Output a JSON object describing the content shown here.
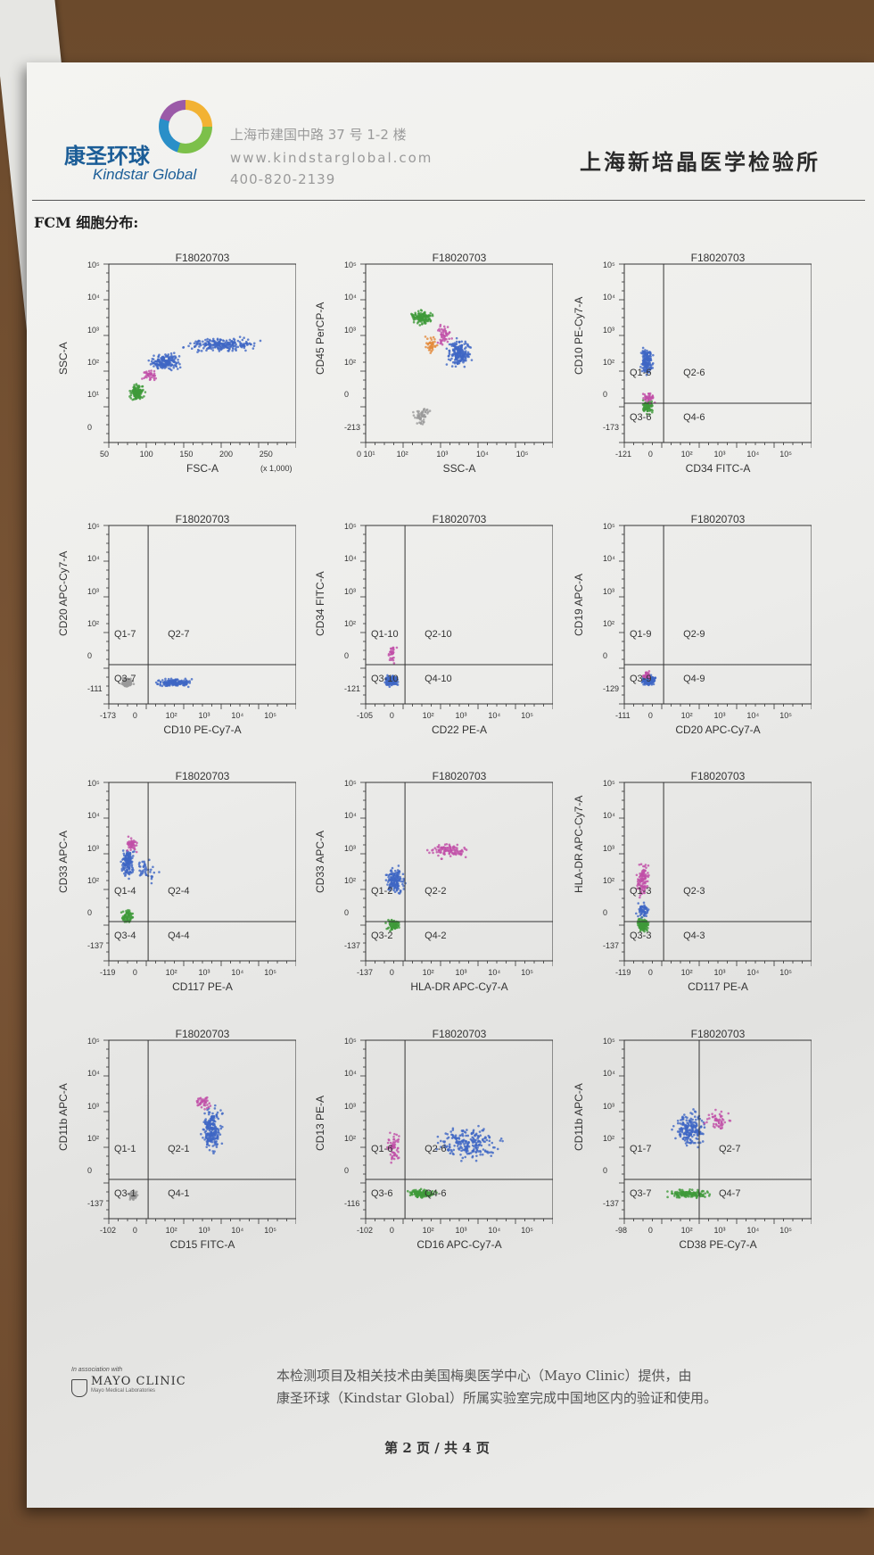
{
  "header": {
    "logo_cn": "康圣环球",
    "logo_en": "Kindstar Global",
    "address": "上海市建国中路 37 号 1-2 楼",
    "website": "www.kindstarglobal.com",
    "phone": "400-820-2139",
    "lab_name": "上海新培晶医学检验所"
  },
  "section_title": "FCM 细胞分布:",
  "plots": [
    {
      "title": "F18020703",
      "xlabel": "FSC-A",
      "ylabel": "SSC-A",
      "q1": "",
      "q2": "",
      "q3": "",
      "q4": "",
      "xticks": [
        "50",
        "100",
        "150",
        "200",
        "250"
      ],
      "yticks": [
        "10⁵",
        "10⁴",
        "10³",
        "10²",
        "10¹",
        "0"
      ],
      "xnote": "(x 1,000)"
    },
    {
      "title": "F18020703",
      "xlabel": "SSC-A",
      "ylabel": "CD45 PerCP-A",
      "q1": "",
      "q2": "",
      "q3": "",
      "q4": "",
      "xticks": [
        "0 10¹",
        "10²",
        "10³",
        "10⁴",
        "10⁵"
      ],
      "yticks": [
        "10⁵",
        "10⁴",
        "10³",
        "10²",
        "0",
        "-213"
      ],
      "xnote": ""
    },
    {
      "title": "F18020703",
      "xlabel": "CD34 FITC-A",
      "ylabel": "CD10 PE-Cy7-A",
      "q1": "Q1-6",
      "q2": "Q2-6",
      "q3": "Q3-6",
      "q4": "Q4-6",
      "xticks": [
        "-121",
        "0",
        "10²",
        "10³",
        "10⁴",
        "10⁵"
      ],
      "yticks": [
        "10⁵",
        "10⁴",
        "10³",
        "10²",
        "0",
        "-173"
      ],
      "xnote": ""
    },
    {
      "title": "F18020703",
      "xlabel": "CD10 PE-Cy7-A",
      "ylabel": "CD20 APC-Cy7-A",
      "q1": "Q1-7",
      "q2": "Q2-7",
      "q3": "Q3-7",
      "q4": "",
      "xticks": [
        "-173",
        "0",
        "10²",
        "10³",
        "10⁴",
        "10⁵"
      ],
      "yticks": [
        "10⁵",
        "10⁴",
        "10³",
        "10²",
        "0",
        "-111"
      ],
      "xnote": ""
    },
    {
      "title": "F18020703",
      "xlabel": "CD22 PE-A",
      "ylabel": "CD34 FITC-A",
      "q1": "Q1-10",
      "q2": "Q2-10",
      "q3": "Q3-10",
      "q4": "Q4-10",
      "xticks": [
        "-105",
        "0",
        "10²",
        "10³",
        "10⁴",
        "10⁵"
      ],
      "yticks": [
        "10⁵",
        "10⁴",
        "10³",
        "10²",
        "0",
        "-121"
      ],
      "xnote": ""
    },
    {
      "title": "F18020703",
      "xlabel": "CD20 APC-Cy7-A",
      "ylabel": "CD19 APC-A",
      "q1": "Q1-9",
      "q2": "Q2-9",
      "q3": "Q3-9",
      "q4": "Q4-9",
      "xticks": [
        "-111",
        "0",
        "10²",
        "10³",
        "10⁴",
        "10⁵"
      ],
      "yticks": [
        "10⁵",
        "10⁴",
        "10³",
        "10²",
        "0",
        "-129"
      ],
      "xnote": ""
    },
    {
      "title": "F18020703",
      "xlabel": "CD117 PE-A",
      "ylabel": "CD33 APC-A",
      "q1": "Q1-4",
      "q2": "Q2-4",
      "q3": "Q3-4",
      "q4": "Q4-4",
      "xticks": [
        "-119",
        "0",
        "10²",
        "10³",
        "10⁴",
        "10⁵"
      ],
      "yticks": [
        "10⁵",
        "10⁴",
        "10³",
        "10²",
        "0",
        "-137"
      ],
      "xnote": ""
    },
    {
      "title": "F18020703",
      "xlabel": "HLA-DR APC-Cy7-A",
      "ylabel": "CD33 APC-A",
      "q1": "Q1-2",
      "q2": "Q2-2",
      "q3": "Q3-2",
      "q4": "Q4-2",
      "xticks": [
        "-137",
        "0",
        "10²",
        "10³",
        "10⁴",
        "10⁵"
      ],
      "yticks": [
        "10⁵",
        "10⁴",
        "10³",
        "10²",
        "0",
        "-137"
      ],
      "xnote": ""
    },
    {
      "title": "F18020703",
      "xlabel": "CD117 PE-A",
      "ylabel": "HLA-DR APC-Cy7-A",
      "q1": "Q1-3",
      "q2": "Q2-3",
      "q3": "Q3-3",
      "q4": "Q4-3",
      "xticks": [
        "-119",
        "0",
        "10²",
        "10³",
        "10⁴",
        "10⁵"
      ],
      "yticks": [
        "10⁵",
        "10⁴",
        "10³",
        "10²",
        "0",
        "-137"
      ],
      "xnote": ""
    },
    {
      "title": "F18020703",
      "xlabel": "CD15 FITC-A",
      "ylabel": "CD11b APC-A",
      "q1": "Q1-1",
      "q2": "Q2-1",
      "q3": "Q3-1",
      "q4": "Q4-1",
      "xticks": [
        "-102",
        "0",
        "10²",
        "10³",
        "10⁴",
        "10⁵"
      ],
      "yticks": [
        "10⁵",
        "10⁴",
        "10³",
        "10²",
        "0",
        "-137"
      ],
      "xnote": ""
    },
    {
      "title": "F18020703",
      "xlabel": "CD16 APC-Cy7-A",
      "ylabel": "CD13 PE-A",
      "q1": "Q1-6",
      "q2": "Q2-6",
      "q3": "Q3-6",
      "q4": "Q4-6",
      "xticks": [
        "-102",
        "0",
        "10²",
        "10³",
        "10⁴",
        "10⁵"
      ],
      "yticks": [
        "10⁵",
        "10⁴",
        "10³",
        "10²",
        "0",
        "-116"
      ],
      "xnote": ""
    },
    {
      "title": "F18020703",
      "xlabel": "CD38 PE-Cy7-A",
      "ylabel": "CD11b APC-A",
      "q1": "Q1-7",
      "q2": "Q2-7",
      "q3": "Q3-7",
      "q4": "Q4-7",
      "xticks": [
        "-98",
        "0",
        "10²",
        "10³",
        "10⁴",
        "10⁵"
      ],
      "yticks": [
        "10⁵",
        "10⁴",
        "10³",
        "10²",
        "0",
        "-137"
      ],
      "xnote": ""
    }
  ],
  "footer": {
    "mayo_small": "In association with",
    "mayo_name": "MAYO CLINIC",
    "mayo_sub": "Mayo Medical Laboratories",
    "text_line1": "本检测项目及相关技术由美国梅奥医学中心（Mayo Clinic）提供，由",
    "text_line2": "康圣环球（Kindstar Global）所属实验室完成中国地区内的验证和使用。",
    "page": "第 2 页 / 共 4 页"
  },
  "colors": {
    "blue": "#3f66c4",
    "green": "#3f9a3a",
    "magenta": "#c04fa8",
    "orange": "#e38a3a",
    "gray": "#9a9a9a",
    "brand": "#1b5d97"
  }
}
